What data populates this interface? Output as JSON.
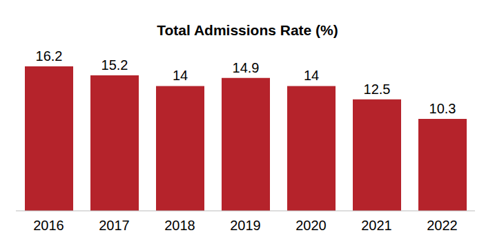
{
  "chart_data": {
    "type": "bar",
    "title": "Total Admissions Rate (%)",
    "categories": [
      "2016",
      "2017",
      "2018",
      "2019",
      "2020",
      "2021",
      "2022"
    ],
    "values": [
      16.2,
      15.2,
      14,
      14.9,
      14,
      12.5,
      10.3
    ],
    "color": "#b5232b",
    "ylim": [
      0,
      16.2
    ],
    "grid": false,
    "data_labels": true,
    "tick_labels": "x"
  }
}
